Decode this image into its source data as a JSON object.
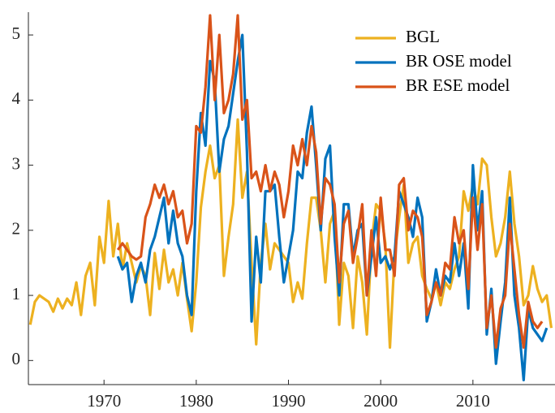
{
  "chart_data": {
    "type": "line",
    "x": [
      1962,
      1962.5,
      1963,
      1963.5,
      1964,
      1964.5,
      1965,
      1965.5,
      1966,
      1966.5,
      1967,
      1967.5,
      1968,
      1968.5,
      1969,
      1969.5,
      1970,
      1970.5,
      1971,
      1971.5,
      1972,
      1972.5,
      1973,
      1973.5,
      1974,
      1974.5,
      1975,
      1975.5,
      1976,
      1976.5,
      1977,
      1977.5,
      1978,
      1978.5,
      1979,
      1979.5,
      1980,
      1980.5,
      1981,
      1981.5,
      1982,
      1982.5,
      1983,
      1983.5,
      1984,
      1984.5,
      1985,
      1985.5,
      1986,
      1986.5,
      1987,
      1987.5,
      1988,
      1988.5,
      1989,
      1989.5,
      1990,
      1990.5,
      1991,
      1991.5,
      1992,
      1992.5,
      1993,
      1993.5,
      1994,
      1994.5,
      1995,
      1995.5,
      1996,
      1996.5,
      1997,
      1997.5,
      1998,
      1998.5,
      1999,
      1999.5,
      2000,
      2000.5,
      2001,
      2001.5,
      2002,
      2002.5,
      2003,
      2003.5,
      2004,
      2004.5,
      2005,
      2005.5,
      2006,
      2006.5,
      2007,
      2007.5,
      2008,
      2008.5,
      2009,
      2009.5,
      2010,
      2010.5,
      2011,
      2011.5,
      2012,
      2012.5,
      2013,
      2013.5,
      2014,
      2014.5,
      2015,
      2015.5,
      2016,
      2016.5,
      2017,
      2017.5,
      2018,
      2018.5
    ],
    "series": [
      {
        "name": "BGL",
        "color": "#EDB120",
        "values": [
          0.55,
          0.9,
          1.0,
          0.95,
          0.9,
          0.75,
          0.95,
          0.8,
          0.95,
          0.85,
          1.2,
          0.7,
          1.3,
          1.5,
          0.85,
          1.9,
          1.5,
          2.45,
          1.6,
          2.1,
          1.4,
          1.8,
          1.5,
          1.2,
          1.45,
          1.3,
          0.7,
          1.65,
          1.1,
          1.7,
          1.2,
          1.4,
          1.0,
          1.5,
          0.95,
          0.45,
          1.2,
          2.35,
          2.9,
          3.3,
          2.8,
          3.0,
          1.3,
          1.9,
          2.4,
          3.7,
          2.5,
          2.9,
          1.5,
          0.25,
          1.5,
          2.1,
          1.4,
          1.8,
          1.7,
          1.6,
          1.5,
          0.9,
          1.2,
          0.95,
          1.8,
          2.5,
          2.5,
          2.0,
          1.2,
          2.1,
          2.3,
          0.55,
          1.5,
          1.3,
          0.5,
          1.6,
          1.2,
          0.4,
          1.8,
          2.4,
          2.3,
          1.8,
          0.2,
          1.6,
          2.2,
          2.7,
          1.5,
          1.8,
          1.9,
          1.3,
          1.1,
          0.95,
          1.2,
          0.85,
          1.2,
          1.1,
          1.4,
          1.6,
          2.6,
          2.3,
          2.7,
          2.4,
          3.1,
          3.0,
          2.2,
          1.6,
          1.8,
          2.2,
          2.9,
          2.1,
          1.6,
          0.85,
          1.0,
          1.45,
          1.1,
          0.9,
          1.0,
          0.5
        ]
      },
      {
        "name": "BR OSE model",
        "color": "#0072BD",
        "values": [
          null,
          null,
          null,
          null,
          null,
          null,
          null,
          null,
          null,
          null,
          null,
          null,
          null,
          null,
          null,
          null,
          null,
          null,
          null,
          1.6,
          1.4,
          1.5,
          0.9,
          1.3,
          1.5,
          1.2,
          1.7,
          1.9,
          2.2,
          2.5,
          1.8,
          2.3,
          1.8,
          1.6,
          1.0,
          0.7,
          2.6,
          3.8,
          3.3,
          4.6,
          4.3,
          2.9,
          3.4,
          3.6,
          4.1,
          4.6,
          5.0,
          3.2,
          0.6,
          1.9,
          1.2,
          2.6,
          2.6,
          2.7,
          1.9,
          1.2,
          1.6,
          2.0,
          2.9,
          2.8,
          3.5,
          3.9,
          3.0,
          2.0,
          3.1,
          3.3,
          1.9,
          1.0,
          2.4,
          2.4,
          1.6,
          2.0,
          2.1,
          1.0,
          1.6,
          2.2,
          1.5,
          1.6,
          1.4,
          1.6,
          2.6,
          2.4,
          2.2,
          1.9,
          2.5,
          2.2,
          0.6,
          0.9,
          1.4,
          1.0,
          1.3,
          1.2,
          1.8,
          1.3,
          1.8,
          0.8,
          3.0,
          2.0,
          2.6,
          0.4,
          1.1,
          -0.05,
          0.6,
          1.2,
          2.5,
          1.0,
          0.5,
          -0.3,
          0.8,
          0.5,
          0.4,
          0.3,
          0.5,
          null
        ]
      },
      {
        "name": "BR ESE model",
        "color": "#D95319",
        "values": [
          null,
          null,
          null,
          null,
          null,
          null,
          null,
          null,
          null,
          null,
          null,
          null,
          null,
          null,
          null,
          null,
          null,
          null,
          null,
          1.7,
          1.8,
          1.7,
          1.6,
          1.55,
          1.6,
          2.2,
          2.4,
          2.7,
          2.5,
          2.7,
          2.4,
          2.6,
          2.2,
          2.3,
          1.8,
          2.1,
          3.6,
          3.5,
          4.2,
          5.3,
          4.0,
          5.0,
          3.8,
          4.0,
          4.4,
          5.3,
          3.7,
          4.0,
          2.8,
          2.9,
          2.6,
          3.0,
          2.6,
          2.9,
          2.7,
          2.2,
          2.6,
          3.3,
          3.0,
          3.4,
          3.0,
          3.6,
          3.2,
          2.1,
          2.8,
          2.7,
          2.4,
          1.2,
          2.1,
          2.3,
          1.5,
          1.9,
          2.4,
          1.0,
          2.0,
          1.3,
          2.5,
          1.7,
          1.7,
          1.3,
          2.7,
          2.8,
          2.0,
          2.3,
          2.2,
          1.9,
          0.7,
          0.9,
          1.2,
          1.0,
          1.5,
          1.4,
          2.2,
          1.8,
          2.0,
          1.1,
          2.5,
          1.7,
          2.4,
          0.5,
          1.0,
          0.2,
          0.8,
          1.0,
          2.1,
          1.4,
          0.7,
          0.2,
          0.9,
          0.6,
          0.5,
          0.6,
          null,
          null
        ]
      }
    ],
    "xlim": [
      1961.8,
      2018.9
    ],
    "ylim": [
      -0.37,
      5.35
    ],
    "xticks": [
      1970,
      1980,
      1990,
      2000,
      2010
    ],
    "yticks": [
      0,
      1,
      2,
      3,
      4,
      5
    ],
    "legend": "upper right"
  }
}
